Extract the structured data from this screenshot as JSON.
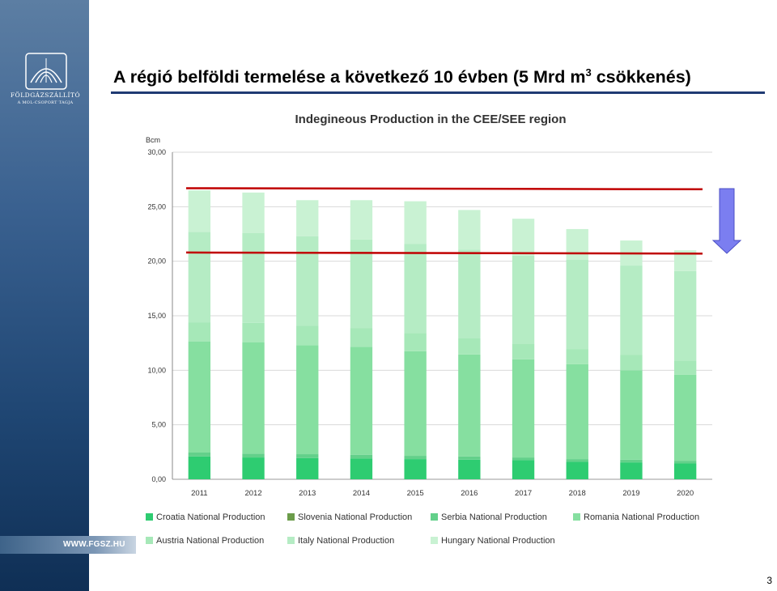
{
  "slide": {
    "title_main": "A régió belföldi termelése a következő 10 évben (5 Mrd m",
    "title_sup": "3",
    "title_end": " csökkenés)",
    "page_number": "3",
    "logo_name": "FÖLDGÁZSZÁLLÍTÓ",
    "logo_sub": "A MOL-CSOPORT TAGJA",
    "website": "WWW.FGSZ.HU",
    "accent_color": "#1f3a73",
    "line_color": "#c00000",
    "arrow_color": "#7b7ef0",
    "arrow_icon": "down-arrow-icon"
  },
  "chart_data": {
    "type": "bar",
    "stacked": true,
    "title": "Indegineous Production in the CEE/SEE region",
    "ylabel": "Bcm",
    "xlabel": "",
    "ylim": [
      0,
      30
    ],
    "yticks": [
      "0,00",
      "5,00",
      "10,00",
      "15,00",
      "20,00",
      "25,00",
      "30,00"
    ],
    "grid": true,
    "legend_position": "bottom",
    "categories": [
      "2011",
      "2012",
      "2013",
      "2014",
      "2015",
      "2016",
      "2017",
      "2018",
      "2019",
      "2020"
    ],
    "series": [
      {
        "name": "Croatia National Production",
        "color": "#2ecc71",
        "values": [
          2.1,
          2.0,
          1.95,
          1.9,
          1.85,
          1.8,
          1.75,
          1.6,
          1.55,
          1.45
        ]
      },
      {
        "name": "Slovenia National Production",
        "color": "#6b9c4a",
        "values": [
          0.0,
          0.0,
          0.0,
          0.0,
          0.0,
          0.0,
          0.0,
          0.0,
          0.0,
          0.0
        ]
      },
      {
        "name": "Serbia National Production",
        "color": "#63d08a",
        "values": [
          0.35,
          0.35,
          0.35,
          0.35,
          0.3,
          0.3,
          0.25,
          0.25,
          0.25,
          0.25
        ]
      },
      {
        "name": "Romania National Production",
        "color": "#86dfa0",
        "values": [
          10.2,
          10.2,
          10.0,
          9.9,
          9.6,
          9.35,
          9.0,
          8.7,
          8.2,
          7.9
        ]
      },
      {
        "name": "Austria National Production",
        "color": "#a6e8b8",
        "values": [
          1.75,
          1.8,
          1.8,
          1.7,
          1.65,
          1.5,
          1.4,
          1.4,
          1.4,
          1.3
        ]
      },
      {
        "name": "Italy National Production",
        "color": "#b5ecc4",
        "values": [
          8.3,
          8.25,
          8.2,
          8.15,
          8.2,
          8.1,
          8.1,
          8.2,
          8.2,
          8.2
        ]
      },
      {
        "name": "Hungary National Production",
        "color": "#c9f2d3",
        "values": [
          3.8,
          3.7,
          3.3,
          3.6,
          3.9,
          3.65,
          3.4,
          2.8,
          2.3,
          1.9
        ]
      }
    ],
    "reference_lines": [
      {
        "from_value": 26.7,
        "to_value": 26.6
      },
      {
        "from_value": 20.8,
        "to_value": 20.7
      }
    ]
  }
}
